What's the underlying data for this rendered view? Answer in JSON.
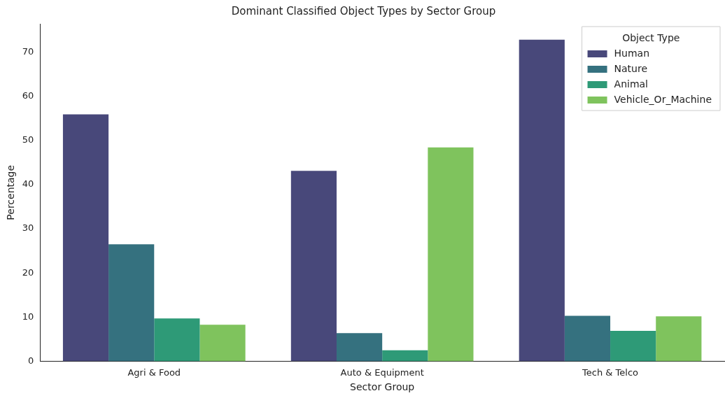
{
  "chart_data": {
    "type": "bar",
    "title": "Dominant Classified Object Types by Sector Group",
    "xlabel": "Sector Group",
    "ylabel": "Percentage",
    "legend_title": "Object Type",
    "legend": "top right",
    "grid": false,
    "categories": [
      "Agri & Food",
      "Auto & Equipment",
      "Tech & Telco"
    ],
    "ylim": [
      0,
      76.4
    ],
    "yticks": [
      0,
      10,
      20,
      30,
      40,
      50,
      60,
      70
    ],
    "series": [
      {
        "name": "Human",
        "color": "#48487a",
        "values": [
          55.9,
          43.1,
          72.8
        ]
      },
      {
        "name": "Nature",
        "color": "#35717f",
        "values": [
          26.5,
          6.4,
          10.3
        ]
      },
      {
        "name": "Animal",
        "color": "#2e9a77",
        "values": [
          9.7,
          2.5,
          6.9
        ]
      },
      {
        "name": "Vehicle_Or_Machine",
        "color": "#7fc35d",
        "values": [
          8.3,
          48.4,
          10.2
        ]
      }
    ]
  }
}
